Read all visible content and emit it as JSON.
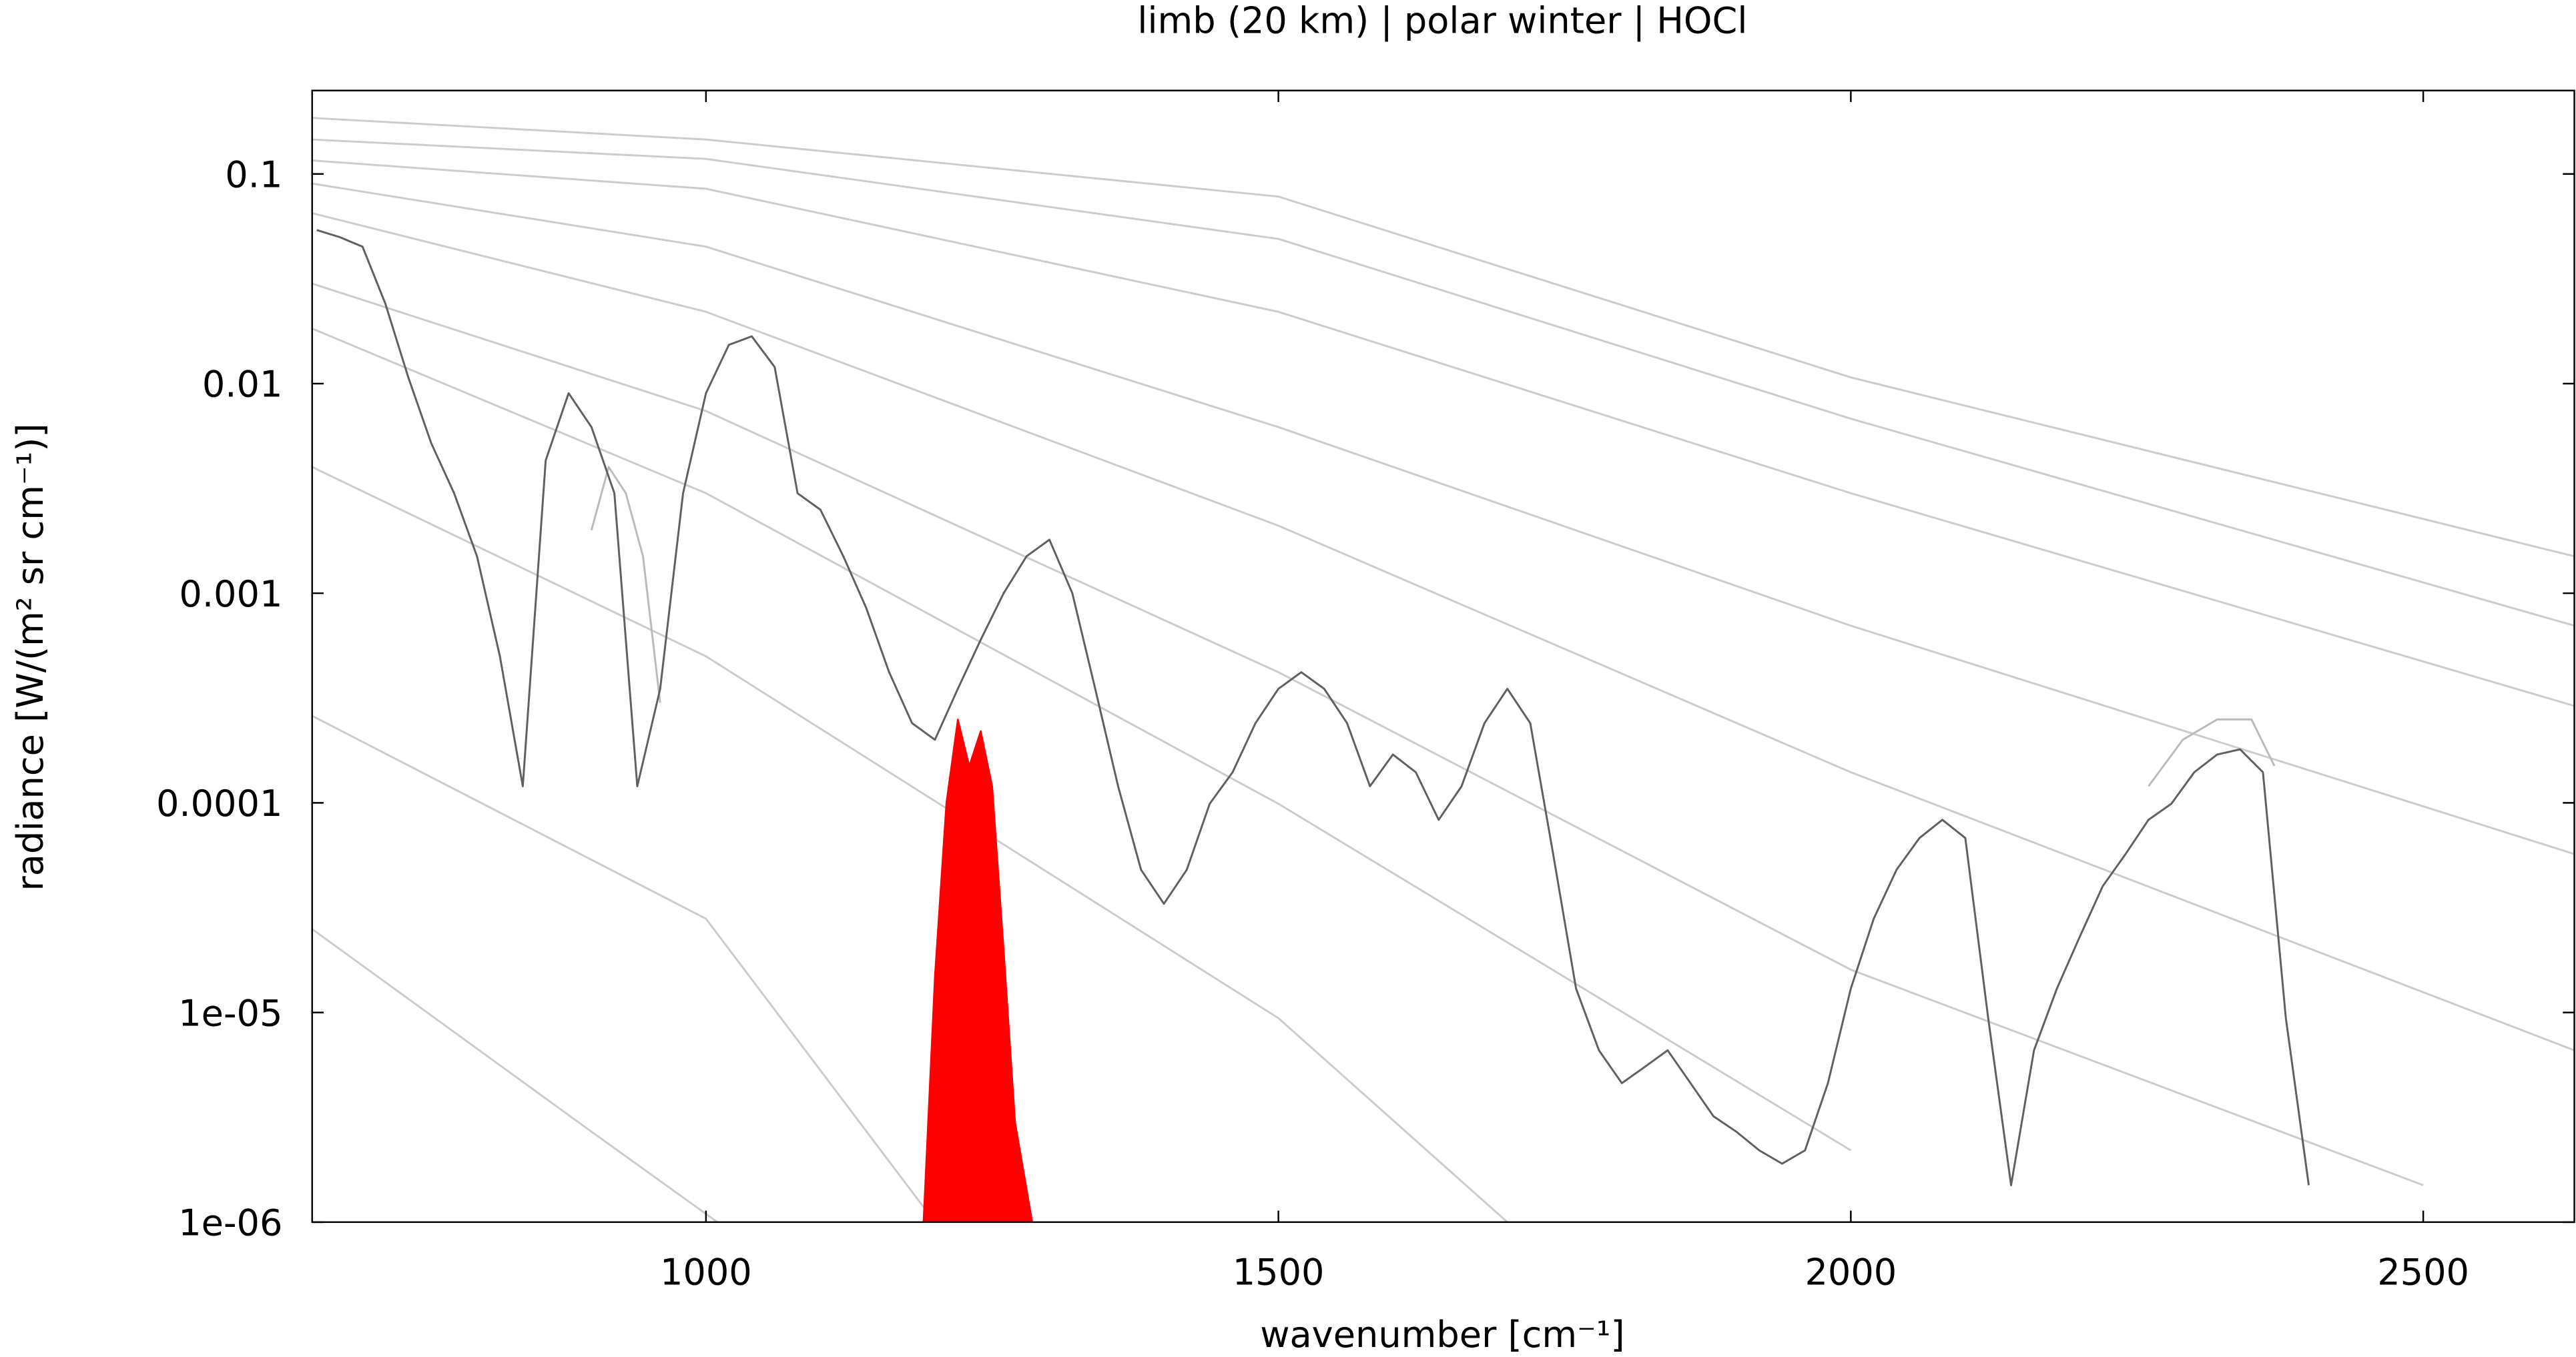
{
  "chart_data": {
    "type": "line",
    "title": "limb (20 km) | polar winter | HOCl",
    "x_label": "wavenumber [cm⁻¹]",
    "y_label": "radiance [W/(m² sr cm⁻¹)]",
    "xlim": [
      656,
      2632
    ],
    "ylim": [
      1e-06,
      0.25
    ],
    "y_scale": "log",
    "xticks": [
      1000,
      1500,
      2000,
      2500
    ],
    "yticks": [
      0.1,
      0.01,
      0.001,
      0.0001,
      {
        "value": 1e-05,
        "label": "1e-05"
      },
      {
        "value": 1e-06,
        "label": "1e-06"
      }
    ],
    "series": [
      {
        "color": "#cccccc",
        "x": [
          656,
          1000,
          1500,
          2000,
          2632
        ],
        "values": [
          0.185,
          0.146,
          0.078,
          0.0107,
          0.0015
        ]
      },
      {
        "color": "#cccccc",
        "x": [
          656,
          1000,
          1500,
          2000,
          2632
        ],
        "values": [
          0.146,
          0.118,
          0.049,
          0.0068,
          0.0007
        ]
      },
      {
        "color": "#cccccc",
        "x": [
          656,
          1000,
          1500,
          2000,
          2632
        ],
        "values": [
          0.116,
          0.085,
          0.022,
          0.003,
          0.00029
        ]
      },
      {
        "color": "#cccccc",
        "x": [
          656,
          1000,
          1500,
          2000,
          2632
        ],
        "values": [
          0.09,
          0.045,
          0.0062,
          0.0007,
          5.7e-05
        ]
      },
      {
        "color": "#cccccc",
        "x": [
          656,
          1000,
          1500,
          2000,
          2632
        ],
        "values": [
          0.065,
          0.022,
          0.0021,
          0.00014,
          6.6e-06
        ]
      },
      {
        "color": "#cccccc",
        "x": [
          656,
          1000,
          1500,
          2000,
          2500
        ],
        "values": [
          0.03,
          0.0074,
          0.00042,
          1.6e-05,
          1.5e-06
        ]
      },
      {
        "color": "#cccccc",
        "x": [
          656,
          1000,
          1500,
          2000
        ],
        "values": [
          0.0183,
          0.003,
          9.9e-05,
          2.2e-06
        ]
      },
      {
        "color": "#cccccc",
        "x": [
          656,
          1000,
          1500,
          1700
        ],
        "values": [
          0.004,
          0.0005,
          9.4e-06,
          1e-06
        ]
      },
      {
        "color": "#cccccc",
        "x": [
          656,
          1000,
          1200
        ],
        "values": [
          0.00026,
          2.8e-05,
          1e-06
        ]
      },
      {
        "color": "#cccccc",
        "x": [
          656,
          900,
          1010
        ],
        "values": [
          2.5e-05,
          2.7e-06,
          1e-06
        ]
      },
      {
        "color": "#bbbbbb",
        "x": [
          900,
          915,
          930,
          945,
          960
        ],
        "values": [
          0.002,
          0.004,
          0.003,
          0.0015,
          0.0003
        ]
      },
      {
        "color": "#bbbbbb",
        "x": [
          2260,
          2290,
          2320,
          2350,
          2370
        ],
        "values": [
          0.00012,
          0.0002,
          0.00025,
          0.00025,
          0.00015
        ]
      },
      {
        "color": "#606060",
        "x": [
          660,
          680,
          700,
          720,
          740,
          760,
          780,
          800,
          820,
          840,
          860,
          880,
          900,
          920,
          940,
          960,
          980,
          1000,
          1020,
          1040,
          1060,
          1080,
          1100,
          1120,
          1140,
          1160,
          1180,
          1200,
          1220,
          1240,
          1260,
          1280,
          1300,
          1320,
          1340,
          1360,
          1380,
          1400,
          1420,
          1440,
          1460,
          1480,
          1500,
          1520,
          1540,
          1560,
          1580,
          1600,
          1620,
          1640,
          1660,
          1680,
          1700,
          1720,
          1740,
          1760,
          1780,
          1800,
          1820,
          1840,
          1860,
          1880,
          1900,
          1920,
          1940,
          1960,
          1980,
          2000,
          2020,
          2040,
          2060,
          2080,
          2100,
          2120,
          2140,
          2160,
          2180,
          2200,
          2220,
          2240,
          2260,
          2280,
          2300,
          2320,
          2340,
          2360,
          2380,
          2400
        ],
        "values": [
          0.054,
          0.05,
          0.045,
          0.024,
          0.0107,
          0.0052,
          0.003,
          0.0015,
          0.0005,
          0.00012,
          0.0043,
          0.009,
          0.0062,
          0.003,
          0.00012,
          0.00035,
          0.003,
          0.009,
          0.0153,
          0.0168,
          0.012,
          0.003,
          0.0025,
          0.0015,
          0.00085,
          0.00042,
          0.00024,
          0.0002,
          0.00035,
          0.0006,
          0.001,
          0.0015,
          0.0018,
          0.001,
          0.00035,
          0.00012,
          4.8e-05,
          3.3e-05,
          4.8e-05,
          9.9e-05,
          0.00014,
          0.00024,
          0.00035,
          0.00042,
          0.00035,
          0.00024,
          0.00012,
          0.00017,
          0.00014,
          8.3e-05,
          0.00012,
          0.00024,
          0.00035,
          0.00024,
          5.7e-05,
          1.3e-05,
          6.6e-06,
          4.6e-06,
          5.5e-06,
          6.6e-06,
          4.6e-06,
          3.2e-06,
          2.7e-06,
          2.2e-06,
          1.9e-06,
          2.2e-06,
          4.6e-06,
          1.3e-05,
          2.8e-05,
          4.8e-05,
          6.8e-05,
          8.3e-05,
          6.8e-05,
          9.4e-06,
          1.5e-06,
          6.6e-06,
          1.3e-05,
          2.3e-05,
          4e-05,
          5.7e-05,
          8.3e-05,
          9.9e-05,
          0.00014,
          0.00017,
          0.00018,
          0.00014,
          9.4e-06,
          1.5e-06
        ]
      },
      {
        "color": "#ff0000",
        "fill": true,
        "x": [
          1190,
          1200,
          1210,
          1220,
          1230,
          1240,
          1250,
          1260,
          1270,
          1285
        ],
        "values": [
          1e-06,
          1.5e-05,
          0.0001,
          0.00025,
          0.00015,
          0.00022,
          0.00012,
          2e-05,
          3e-06,
          1e-06
        ]
      }
    ]
  }
}
